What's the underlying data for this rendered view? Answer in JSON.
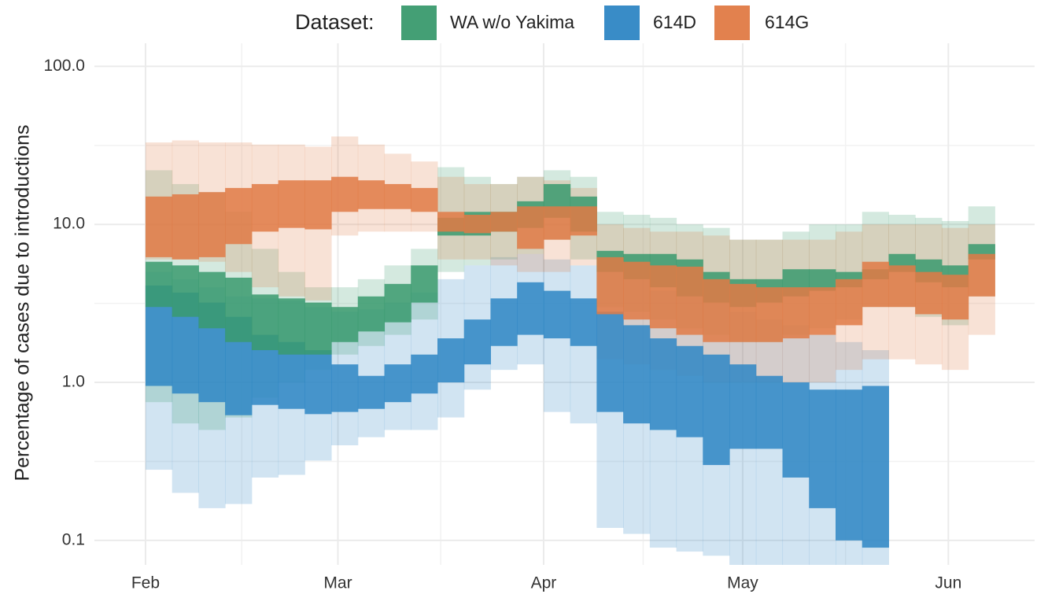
{
  "chart_data": {
    "type": "step-ribbon",
    "legend_title": "Dataset:",
    "ylabel": "Percentage of cases due to introductions",
    "log_y": true,
    "grid": true,
    "legend_position": "top",
    "ylim": [
      0.07,
      140
    ],
    "yticks": [
      {
        "value": 0.1,
        "label": "0.1"
      },
      {
        "value": 1,
        "label": "1.0"
      },
      {
        "value": 10,
        "label": "10.0"
      },
      {
        "value": 100,
        "label": "100.0"
      }
    ],
    "xlim": [
      -7.7,
      134
    ],
    "xticks": [
      {
        "value": 0,
        "label": "Feb"
      },
      {
        "value": 29,
        "label": "Mar"
      },
      {
        "value": 60,
        "label": "Apr"
      },
      {
        "value": 90,
        "label": "May"
      },
      {
        "value": 121,
        "label": "Jun"
      }
    ],
    "x": [
      0,
      4,
      8,
      12,
      16,
      20,
      24,
      28,
      32,
      36,
      40,
      44,
      48,
      52,
      56,
      60,
      64,
      68,
      72,
      76,
      80,
      84,
      88,
      92,
      96,
      100,
      104,
      108,
      112,
      116,
      120,
      124
    ],
    "series": [
      {
        "name": "614D",
        "color": "#2e86c4",
        "outer_low": [
          0.28,
          0.2,
          0.16,
          0.17,
          0.25,
          0.26,
          0.32,
          0.4,
          0.45,
          0.5,
          0.5,
          0.6,
          0.9,
          1.2,
          1.3,
          0.65,
          0.55,
          0.12,
          0.11,
          0.09,
          0.085,
          0.08,
          0.07,
          0.07,
          0.07,
          0.07,
          0.07,
          0.07,
          null,
          null,
          null,
          null
        ],
        "outer_high": [
          5,
          4.5,
          4,
          3.5,
          3.4,
          3.3,
          3,
          2.8,
          2.9,
          3.2,
          3.7,
          4.5,
          5.5,
          6.2,
          6.5,
          6,
          5.5,
          5,
          4.5,
          3.8,
          3.5,
          3.2,
          2.8,
          2.5,
          2.3,
          2,
          1.8,
          1.6,
          null,
          null,
          null,
          null
        ],
        "inner_low": [
          0.95,
          0.85,
          0.75,
          0.62,
          0.72,
          0.68,
          0.63,
          0.65,
          0.68,
          0.75,
          0.85,
          1.0,
          1.3,
          1.7,
          2.0,
          1.9,
          1.7,
          0.65,
          0.55,
          0.5,
          0.45,
          0.3,
          0.38,
          0.38,
          0.25,
          0.16,
          0.1,
          0.09,
          null,
          null,
          null,
          null
        ],
        "inner_high": [
          4.1,
          3.7,
          3.2,
          2.6,
          2.0,
          1.8,
          1.6,
          1.3,
          1.1,
          1.3,
          1.5,
          1.9,
          2.5,
          3.4,
          4.3,
          3.8,
          3.4,
          2.8,
          2.3,
          1.9,
          1.7,
          1.5,
          1.3,
          1.1,
          1.0,
          0.9,
          0.9,
          0.95,
          null,
          null,
          null,
          null
        ]
      },
      {
        "name": "WA w/o Yakima",
        "color": "#3a9a6e",
        "outer_low": [
          0.75,
          0.55,
          0.5,
          0.6,
          0.8,
          1.0,
          1.2,
          1.5,
          1.7,
          2,
          2.5,
          5,
          5.5,
          6,
          6.5,
          8,
          6,
          3,
          2.8,
          2.5,
          2.2,
          2,
          1.8,
          1.8,
          2,
          2.2,
          2.5,
          3,
          3,
          2.6,
          2.3,
          3.5
        ],
        "outer_high": [
          22,
          18,
          16,
          12,
          7,
          5,
          4,
          4,
          4.5,
          5.5,
          7,
          23,
          20,
          18,
          20,
          22,
          20,
          12,
          11.5,
          11,
          10,
          9.5,
          8,
          8,
          9,
          10,
          10,
          12,
          11.5,
          11,
          10.5,
          13
        ],
        "inner_low": [
          3.0,
          2.6,
          2.2,
          1.8,
          1.6,
          1.5,
          1.5,
          1.8,
          2.1,
          2.4,
          3.2,
          8.5,
          8.5,
          9,
          9.5,
          11,
          9,
          5,
          4.5,
          4,
          3.5,
          3.2,
          3,
          3.2,
          3.5,
          3.8,
          4,
          4.5,
          5,
          4.3,
          4,
          6
        ],
        "inner_high": [
          5.8,
          5.5,
          5,
          4.6,
          3.6,
          3.4,
          3.2,
          3.0,
          3.5,
          4.2,
          5.5,
          11,
          12,
          12,
          14,
          18,
          15,
          6.8,
          6.5,
          6.5,
          6,
          5,
          4.5,
          4.5,
          5.2,
          5.2,
          5,
          5.2,
          6.5,
          6,
          5.5,
          7.5
        ]
      },
      {
        "name": "614G",
        "color": "#e07a45",
        "outer_low": [
          6,
          6,
          5.8,
          5,
          4,
          3.5,
          3.3,
          8.5,
          9,
          9,
          9,
          6,
          6,
          5.5,
          5,
          5,
          5.5,
          1.4,
          1.3,
          1.2,
          1.1,
          1.0,
          1.0,
          1.0,
          1.0,
          1.0,
          1.2,
          1.4,
          1.4,
          1.3,
          1.2,
          2
        ],
        "outer_high": [
          33,
          34,
          33,
          33,
          32,
          32,
          31,
          36,
          32,
          28,
          25,
          20,
          18,
          18,
          20,
          19,
          17,
          10,
          9.5,
          9,
          9,
          8.5,
          8,
          8,
          8,
          8,
          9,
          10,
          10,
          10,
          9.5,
          10
        ],
        "inner_low": [
          6.2,
          6,
          6.2,
          7.5,
          9,
          9.5,
          9.3,
          12,
          12.5,
          12.5,
          12,
          9,
          8.8,
          9,
          7,
          8,
          8.5,
          2.7,
          2.5,
          2.2,
          2.0,
          1.8,
          1.8,
          1.8,
          1.9,
          2,
          2.3,
          3,
          3,
          2.7,
          2.5,
          3.5
        ],
        "inner_high": [
          15,
          15.5,
          16,
          17,
          18,
          19,
          19,
          20,
          19,
          18,
          17,
          12,
          11.5,
          12,
          13,
          13,
          13,
          6.2,
          5.8,
          5.5,
          5.4,
          4.5,
          4.2,
          4,
          4,
          4,
          4.5,
          5.8,
          5.5,
          5,
          4.8,
          6.5
        ]
      }
    ],
    "legend_order": [
      1,
      0,
      2
    ]
  }
}
